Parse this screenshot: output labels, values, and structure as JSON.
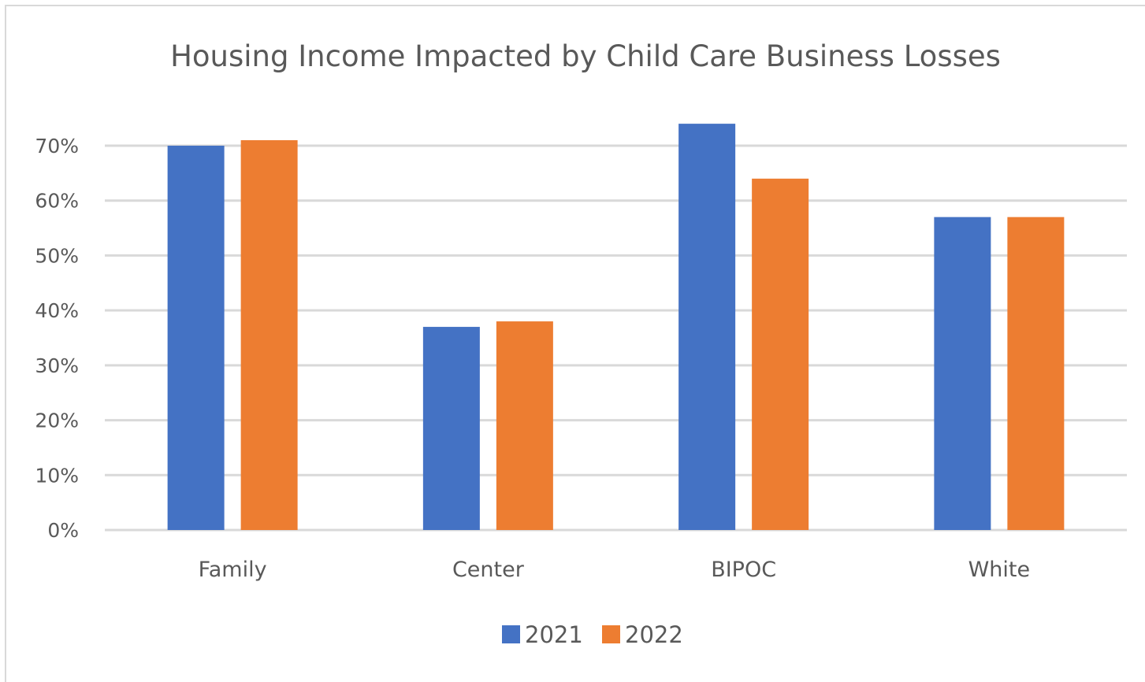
{
  "chart_data": {
    "type": "bar",
    "title": "Housing Income Impacted by Child Care Business Losses",
    "xlabel": "",
    "ylabel": "",
    "categories": [
      "Family",
      "Center",
      "BIPOC",
      "White"
    ],
    "series": [
      {
        "name": "2021",
        "values": [
          0.7,
          0.37,
          0.74,
          0.57
        ],
        "color": "#4472C4"
      },
      {
        "name": "2022",
        "values": [
          0.71,
          0.38,
          0.64,
          0.57
        ],
        "color": "#ED7D31"
      }
    ],
    "ylim": [
      0,
      0.7
    ],
    "yticks": [
      "0%",
      "10%",
      "20%",
      "30%",
      "40%",
      "50%",
      "60%",
      "70%"
    ],
    "grid": true,
    "gridline_color": "#d9d9d9",
    "legend_position": "bottom"
  }
}
